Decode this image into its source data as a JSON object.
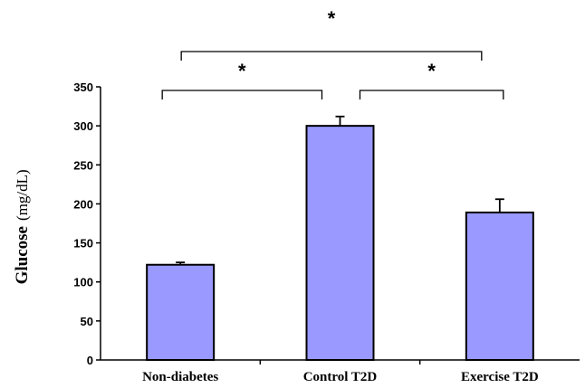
{
  "chart_data": {
    "type": "bar",
    "categories": [
      "Non-diabetes",
      "Control T2D",
      "Exercise T2D"
    ],
    "values": [
      122,
      300,
      189
    ],
    "errors": [
      3,
      12,
      17
    ],
    "ylabel": "Glucose",
    "ylabel_unit": "(mg/dL)",
    "ylim": [
      0,
      350
    ],
    "yticks": [
      0,
      50,
      100,
      150,
      200,
      250,
      300,
      350
    ],
    "ytick_labels": [
      "0",
      "50",
      "100",
      "150",
      "200",
      "250",
      "300",
      "350"
    ],
    "bar_color": "#9999ff",
    "grid": false,
    "significance": [
      {
        "from": 0,
        "to": 1,
        "label": "*",
        "level": 1
      },
      {
        "from": 1,
        "to": 2,
        "label": "*",
        "level": 1
      },
      {
        "from": 0,
        "to": 2,
        "label": "*",
        "level": 2
      }
    ]
  }
}
